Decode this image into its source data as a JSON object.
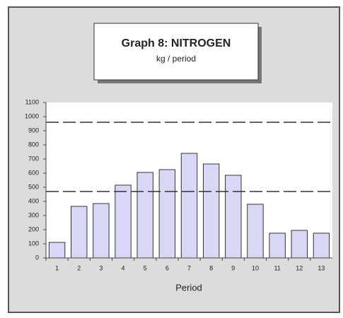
{
  "chart_data": {
    "type": "bar",
    "title": "Graph 8: NITROGEN",
    "subtitle": "kg / period",
    "x_label": "Period",
    "categories": [
      "1",
      "2",
      "3",
      "4",
      "5",
      "6",
      "7",
      "8",
      "9",
      "10",
      "11",
      "12",
      "13"
    ],
    "values": [
      110,
      365,
      385,
      515,
      605,
      625,
      740,
      665,
      585,
      380,
      175,
      195,
      175
    ],
    "color": "#d8d8f6",
    "reference_lines": [
      960,
      470
    ],
    "ylim": [
      0,
      1100
    ],
    "yticks": [
      0,
      100,
      200,
      300,
      400,
      500,
      600,
      700,
      800,
      900,
      1000,
      1100
    ],
    "grid": false
  }
}
